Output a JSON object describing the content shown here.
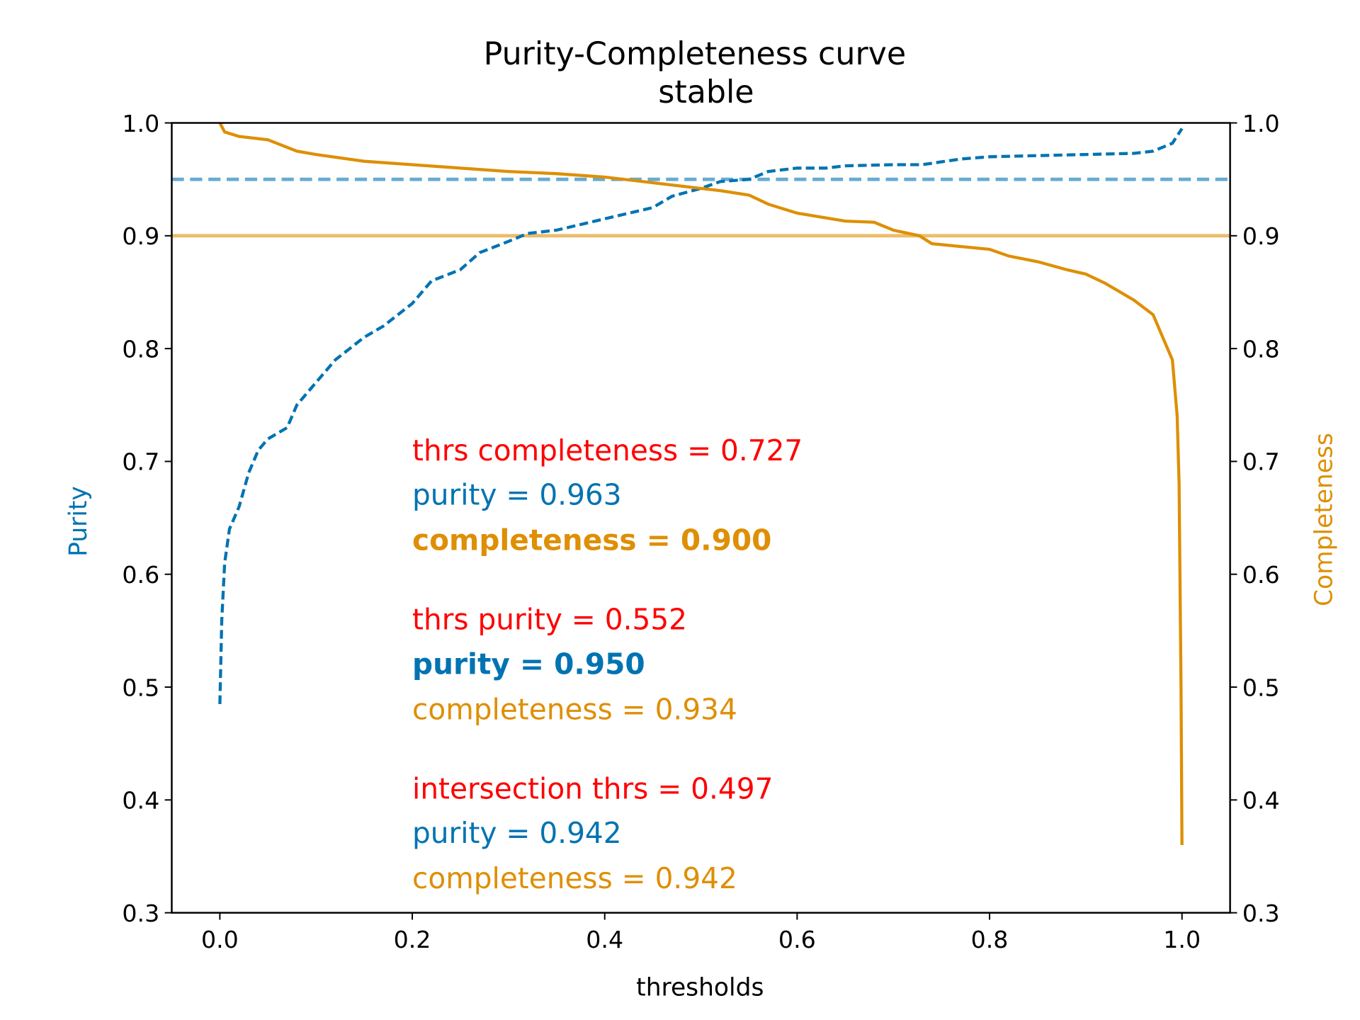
{
  "chart_data": {
    "type": "line",
    "title": "Purity-Completeness curve",
    "subtitle": "stable",
    "xlabel": "thresholds",
    "ylabel_left": "Purity",
    "ylabel_right": "Completeness",
    "xlim": [
      -0.05,
      1.05
    ],
    "ylim": [
      0.3,
      1.0
    ],
    "xticks": [
      "0.0",
      "0.2",
      "0.4",
      "0.6",
      "0.8",
      "1.0"
    ],
    "yticks": [
      "0.3",
      "0.4",
      "0.5",
      "0.6",
      "0.7",
      "0.8",
      "0.9",
      "1.0"
    ],
    "grid": false,
    "colors": {
      "purity": "#0173B2",
      "completeness": "#DE8F05",
      "threshold": "#FF0000"
    },
    "series": [
      {
        "name": "Purity",
        "axis": "left",
        "style": "dashed",
        "x": [
          0,
          0.002,
          0.005,
          0.01,
          0.02,
          0.03,
          0.04,
          0.05,
          0.07,
          0.08,
          0.1,
          0.12,
          0.15,
          0.17,
          0.2,
          0.22,
          0.25,
          0.27,
          0.3,
          0.32,
          0.35,
          0.4,
          0.45,
          0.47,
          0.5,
          0.52,
          0.55,
          0.57,
          0.6,
          0.63,
          0.65,
          0.7,
          0.73,
          0.77,
          0.8,
          0.85,
          0.9,
          0.95,
          0.97,
          0.99,
          1.0
        ],
        "y": [
          0.485,
          0.56,
          0.61,
          0.64,
          0.66,
          0.69,
          0.71,
          0.72,
          0.73,
          0.75,
          0.77,
          0.79,
          0.81,
          0.82,
          0.84,
          0.86,
          0.87,
          0.885,
          0.895,
          0.902,
          0.905,
          0.915,
          0.925,
          0.935,
          0.942,
          0.948,
          0.95,
          0.957,
          0.96,
          0.96,
          0.962,
          0.963,
          0.963,
          0.968,
          0.97,
          0.971,
          0.972,
          0.973,
          0.975,
          0.982,
          0.995
        ]
      },
      {
        "name": "Completeness",
        "axis": "right",
        "style": "solid",
        "x": [
          0,
          0.005,
          0.02,
          0.05,
          0.08,
          0.1,
          0.15,
          0.2,
          0.25,
          0.3,
          0.35,
          0.4,
          0.45,
          0.5,
          0.52,
          0.55,
          0.57,
          0.6,
          0.65,
          0.68,
          0.7,
          0.727,
          0.74,
          0.8,
          0.82,
          0.85,
          0.88,
          0.9,
          0.92,
          0.95,
          0.97,
          0.98,
          0.99,
          0.995,
          0.997,
          0.999,
          1.0
        ],
        "y": [
          1.0,
          0.992,
          0.988,
          0.985,
          0.975,
          0.972,
          0.966,
          0.963,
          0.96,
          0.957,
          0.955,
          0.952,
          0.947,
          0.942,
          0.94,
          0.936,
          0.928,
          0.92,
          0.913,
          0.912,
          0.905,
          0.9,
          0.893,
          0.888,
          0.882,
          0.877,
          0.87,
          0.866,
          0.858,
          0.843,
          0.83,
          0.81,
          0.79,
          0.74,
          0.68,
          0.5,
          0.36
        ]
      }
    ],
    "reference_lines": [
      {
        "axis": "left",
        "y": 0.95,
        "style": "dashed",
        "color": "#0173B2"
      },
      {
        "axis": "right",
        "y": 0.9,
        "style": "solid",
        "color": "#DE8F05"
      }
    ],
    "annotations": [
      {
        "text": "thrs completeness = 0.727",
        "color": "threshold",
        "bold": false
      },
      {
        "text": "purity = 0.963",
        "color": "purity",
        "bold": false
      },
      {
        "text": "completeness = 0.900",
        "color": "completeness",
        "bold": true
      },
      {
        "text": "thrs purity = 0.552",
        "color": "threshold",
        "bold": false
      },
      {
        "text": "purity = 0.950",
        "color": "purity",
        "bold": true
      },
      {
        "text": "completeness = 0.934",
        "color": "completeness",
        "bold": false
      },
      {
        "text": "intersection thrs = 0.497",
        "color": "threshold",
        "bold": false
      },
      {
        "text": "purity = 0.942",
        "color": "purity",
        "bold": false
      },
      {
        "text": "completeness = 0.942",
        "color": "completeness",
        "bold": false
      }
    ]
  }
}
